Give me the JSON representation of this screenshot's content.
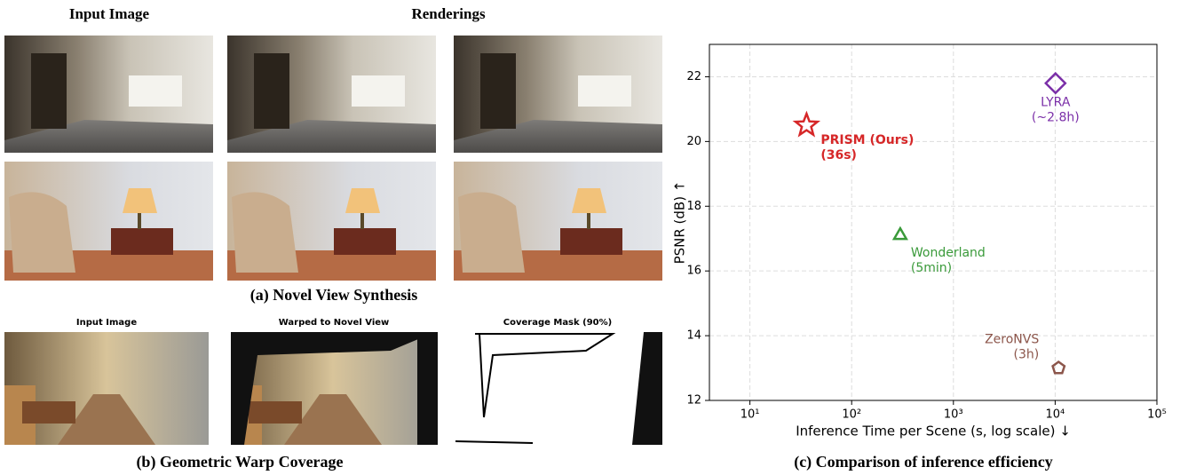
{
  "panels": {
    "a_header_input": "Input Image",
    "a_header_renderings": "Renderings",
    "a_caption": "(a) Novel View Synthesis",
    "b_title_input": "Input Image",
    "b_title_warped": "Warped to Novel View",
    "b_title_mask": "Coverage Mask (90%)",
    "b_caption": "(b) Geometric Warp Coverage",
    "c_caption": "(c) Comparison of inference efficiency"
  },
  "chart_data": {
    "type": "scatter",
    "x_label": "Inference Time per Scene (s, log scale) ↓",
    "y_label": "PSNR (dB) ↑",
    "x_scale": "log",
    "xlim": [
      4,
      100000
    ],
    "ylim": [
      12,
      23
    ],
    "xticks": [
      {
        "value": 10,
        "label": "10¹"
      },
      {
        "value": 100,
        "label": "10²"
      },
      {
        "value": 1000,
        "label": "10³"
      },
      {
        "value": 10000,
        "label": "10⁴"
      },
      {
        "value": 100000,
        "label": "10⁵"
      }
    ],
    "yticks": [
      12,
      14,
      16,
      18,
      20,
      22
    ],
    "grid": true,
    "series": [
      {
        "name": "PRISM (Ours)",
        "note": "(36s)",
        "color": "#d62728",
        "marker": "star",
        "x": [
          36
        ],
        "values": [
          20.5
        ]
      },
      {
        "name": "LYRA",
        "note": "(~2.8h)",
        "color": "#7b2fa8",
        "marker": "diamond",
        "x": [
          10080
        ],
        "values": [
          21.8
        ]
      },
      {
        "name": "Wonderland",
        "note": "(5min)",
        "color": "#3a9a3a",
        "marker": "triangle",
        "x": [
          300
        ],
        "values": [
          17.1
        ]
      },
      {
        "name": "ZeroNVS",
        "note": "(3h)",
        "color": "#8c564b",
        "marker": "pentagon",
        "x": [
          10800
        ],
        "values": [
          13.0
        ]
      }
    ]
  }
}
